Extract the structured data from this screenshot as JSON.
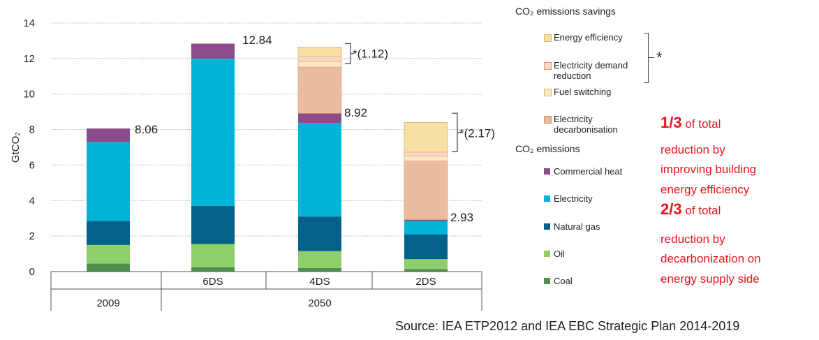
{
  "chart_data": {
    "type": "bar",
    "stacked": true,
    "ylabel": "GtCO₂",
    "ylim": [
      0,
      14
    ],
    "yticks": [
      0,
      2,
      4,
      6,
      8,
      10,
      12,
      14
    ],
    "grid": true,
    "categories": [
      "2009",
      "6DS",
      "4DS",
      "2DS"
    ],
    "group_labels": [
      "2009",
      "2050"
    ],
    "series": [
      {
        "name": "Coal",
        "color": "#4f8f4f",
        "values": [
          0.45,
          0.25,
          0.2,
          0.15
        ]
      },
      {
        "name": "Oil",
        "color": "#8fcf6a",
        "values": [
          1.05,
          1.3,
          0.95,
          0.55
        ]
      },
      {
        "name": "Natural gas",
        "color": "#04628a",
        "values": [
          1.35,
          2.15,
          1.95,
          1.4
        ]
      },
      {
        "name": "Electricity",
        "color": "#00b4d8",
        "values": [
          4.45,
          8.3,
          5.27,
          0.75
        ]
      },
      {
        "name": "Commercial heat",
        "color": "#8c4b8a",
        "values": [
          0.76,
          0.84,
          0.55,
          0.08
        ]
      },
      {
        "name": "Electricity decarbonisation",
        "color": "#eabca0",
        "values": [
          0,
          0,
          2.6,
          3.3
        ]
      },
      {
        "name": "Fuel switching",
        "color": "#fce9c2",
        "values": [
          0,
          0,
          0.32,
          0.28
        ]
      },
      {
        "name": "Electricity demand reduction",
        "color": "#fbd7c6",
        "values": [
          0,
          0,
          0.25,
          0.22
        ]
      },
      {
        "name": "Energy efficiency",
        "color": "#f6e0a4",
        "values": [
          0,
          0,
          0.55,
          1.67
        ]
      }
    ],
    "totals": [
      {
        "category": "2009",
        "label": "8.06"
      },
      {
        "category": "6DS",
        "label": "12.84"
      },
      {
        "category": "4DS",
        "label": "8.92"
      },
      {
        "category": "2DS",
        "label": "2.93"
      }
    ],
    "annotations": [
      {
        "category": "4DS",
        "label": "*(1.12)"
      },
      {
        "category": "2DS",
        "label": "*(2.17)"
      }
    ],
    "legend": {
      "savings_title": "CO₂ emissions savings",
      "savings_items": [
        {
          "label": "Energy efficiency",
          "color": "#f6e0a4"
        },
        {
          "label": "Electricity demand reduction",
          "color": "#fbd7c6"
        },
        {
          "label": "Fuel switching",
          "color": "#fce9c2"
        },
        {
          "label": "Electricity decarbonisation",
          "color": "#eabca0"
        }
      ],
      "savings_star": "*",
      "emissions_title": "CO₂ emissions",
      "emissions_items": [
        {
          "label": "Commercial heat",
          "color": "#8c4b8a"
        },
        {
          "label": "Electricity",
          "color": "#00b4d8"
        },
        {
          "label": "Natural gas",
          "color": "#04628a"
        },
        {
          "label": "Oil",
          "color": "#8fcf6a"
        },
        {
          "label": "Coal",
          "color": "#4f8f4f"
        }
      ]
    }
  },
  "note": {
    "line1_big": "1/3",
    "line1_rest": " of total",
    "line2": "reduction by",
    "line3": "improving building",
    "line4": "energy efficiency",
    "line5_big": "2/3",
    "line5_rest": " of total",
    "line6": "reduction by",
    "line7": "decarbonization on",
    "line8": "energy supply side"
  },
  "source": "Source: IEA ETP2012 and IEA EBC Strategic Plan 2014-2019"
}
